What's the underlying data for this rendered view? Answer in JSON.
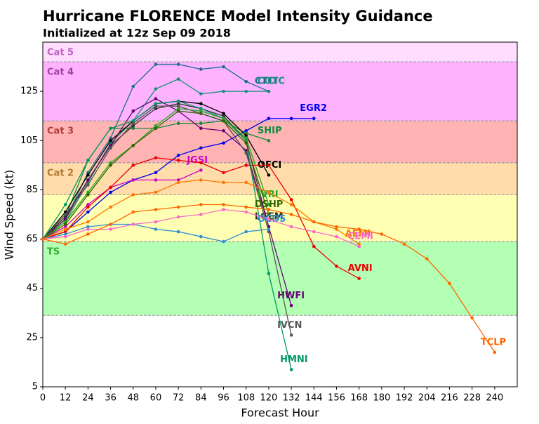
{
  "chart_data": {
    "type": "line",
    "title": "Hurricane FLORENCE Model Intensity Guidance",
    "subtitle": "Initialized at 12z Sep 09 2018",
    "x_label": "Forecast Hour",
    "y_label": "Wind Speed (kt)",
    "xlim": [
      0,
      252
    ],
    "ylim": [
      5,
      145
    ],
    "xticks": [
      0,
      12,
      24,
      36,
      48,
      60,
      72,
      84,
      96,
      108,
      120,
      132,
      144,
      156,
      168,
      180,
      192,
      204,
      216,
      228,
      240
    ],
    "yticks": [
      5,
      25,
      45,
      65,
      85,
      105,
      125
    ],
    "bands": [
      {
        "label": "TS",
        "lower": 34,
        "upper": 64,
        "color": "#b3ffb3",
        "label_color": "#33aa33"
      },
      {
        "label": null,
        "lower": 64,
        "upper": 83,
        "color": "#ffffb3",
        "label_color": "#999900"
      },
      {
        "label": "Cat 2",
        "lower": 83,
        "upper": 96,
        "color": "#ffdcaa",
        "label_color": "#b07a30"
      },
      {
        "label": "Cat 3",
        "lower": 96,
        "upper": 113,
        "color": "#ffb3b3",
        "label_color": "#b03a3a"
      },
      {
        "label": "Cat 4",
        "lower": 113,
        "upper": 137,
        "color": "#ffb3ff",
        "label_color": "#a040a0"
      },
      {
        "label": "Cat 5",
        "lower": 137,
        "upper": 145,
        "color": "#ffddff",
        "label_color": "#c060c0"
      }
    ],
    "x": [
      0,
      12,
      24,
      36,
      48,
      60,
      72,
      84,
      96,
      108,
      120,
      132,
      144,
      156,
      168,
      180,
      192,
      204,
      216,
      228,
      240
    ],
    "series": [
      {
        "name": "CTCI",
        "color": "#1b6f96",
        "values": [
          65,
          73,
          92,
          106,
          127,
          136,
          136,
          134,
          135,
          129,
          125,
          null,
          null,
          null,
          null,
          null,
          null,
          null,
          null,
          null,
          null
        ]
      },
      {
        "name": "COTC",
        "color": "#148f77",
        "values": [
          65,
          72,
          88,
          104,
          113,
          126,
          130,
          124,
          125,
          125,
          125,
          null,
          null,
          null,
          null,
          null,
          null,
          null,
          null,
          null,
          null
        ]
      },
      {
        "name": "EGR2",
        "color": "#0000ee",
        "values": [
          65,
          68,
          76,
          84,
          89,
          92,
          99,
          102,
          104,
          109,
          114,
          114,
          114,
          null,
          null,
          null,
          null,
          null,
          null,
          null,
          null
        ]
      },
      {
        "name": "SHIP",
        "color": "#118844",
        "values": [
          65,
          74,
          97,
          110,
          110,
          110,
          112,
          112,
          113,
          108,
          105,
          null,
          null,
          null,
          null,
          null,
          null,
          null,
          null,
          null,
          null
        ]
      },
      {
        "name": "JGSI",
        "color": "#cc00cc",
        "values": [
          65,
          70,
          79,
          86,
          89,
          89,
          89,
          93,
          null,
          null,
          null,
          null,
          null,
          null,
          null,
          null,
          null,
          null,
          null,
          null,
          null
        ]
      },
      {
        "name": "OFCI",
        "color": "#000000",
        "values": [
          65,
          76,
          91,
          105,
          113,
          120,
          121,
          120,
          116,
          107,
          91,
          null,
          null,
          null,
          null,
          null,
          null,
          null,
          null,
          null,
          null
        ]
      },
      {
        "name": "LGEM",
        "color": "#333333",
        "values": [
          65,
          74,
          89,
          103,
          111,
          118,
          120,
          118,
          115,
          105,
          70,
          null,
          null,
          null,
          null,
          null,
          null,
          null,
          null,
          null,
          null
        ]
      },
      {
        "name": "AVNI",
        "color": "#ee0000",
        "values": [
          65,
          68,
          78,
          86,
          95,
          98,
          97,
          96,
          92,
          95,
          95,
          81,
          62,
          54,
          49,
          null,
          null,
          null,
          null,
          null,
          null
        ]
      },
      {
        "name": "HWFI",
        "color": "#660077",
        "values": [
          65,
          73,
          89,
          103,
          117,
          122,
          117,
          110,
          109,
          101,
          70,
          38,
          null,
          null,
          null,
          null,
          null,
          null,
          null,
          null,
          null
        ]
      },
      {
        "name": "HMNI",
        "color": "#009966",
        "values": [
          65,
          79,
          97,
          110,
          113,
          120,
          121,
          118,
          114,
          105,
          51,
          12,
          null,
          null,
          null,
          null,
          null,
          null,
          null,
          null,
          null
        ]
      },
      {
        "name": "IVCN",
        "color": "#555555",
        "values": [
          65,
          75,
          87,
          102,
          112,
          119,
          119,
          116,
          113,
          100,
          68,
          26,
          null,
          null,
          null,
          null,
          null,
          null,
          null,
          null,
          null
        ]
      },
      {
        "name": "IVRI",
        "color": "#22aa22",
        "values": [
          65,
          72,
          84,
          96,
          103,
          111,
          118,
          117,
          114,
          106,
          79,
          null,
          null,
          null,
          null,
          null,
          null,
          null,
          null,
          null,
          null
        ]
      },
      {
        "name": "DSHP",
        "color": "#336600",
        "values": [
          65,
          71,
          83,
          95,
          103,
          110,
          117,
          116,
          113,
          104,
          75,
          null,
          null,
          null,
          null,
          null,
          null,
          null,
          null,
          null,
          null
        ]
      },
      {
        "name": "OCD5",
        "color": "#2a8fd6",
        "values": [
          65,
          67,
          70,
          71,
          71,
          69,
          68,
          66,
          64,
          68,
          69,
          null,
          null,
          null,
          null,
          null,
          null,
          null,
          null,
          null,
          null
        ]
      },
      {
        "name": "AEMI",
        "color": "#ff7700",
        "values": [
          65,
          69,
          72,
          78,
          83,
          84,
          88,
          89,
          88,
          88,
          84,
          79,
          72,
          69,
          63,
          null,
          null,
          null,
          null,
          null,
          null
        ]
      },
      {
        "name": "CEMI",
        "color": "#ff66cc",
        "values": [
          65,
          66,
          69,
          69,
          71,
          72,
          74,
          75,
          77,
          76,
          73,
          70,
          68,
          66,
          62,
          null,
          null,
          null,
          null,
          null,
          null
        ]
      },
      {
        "name": "TCLP",
        "color": "#ff6600",
        "values": [
          65,
          63,
          67,
          71,
          76,
          77,
          78,
          79,
          79,
          78,
          77,
          75,
          72,
          70,
          69,
          67,
          63,
          57,
          47,
          33,
          19
        ]
      }
    ],
    "grid": false
  }
}
